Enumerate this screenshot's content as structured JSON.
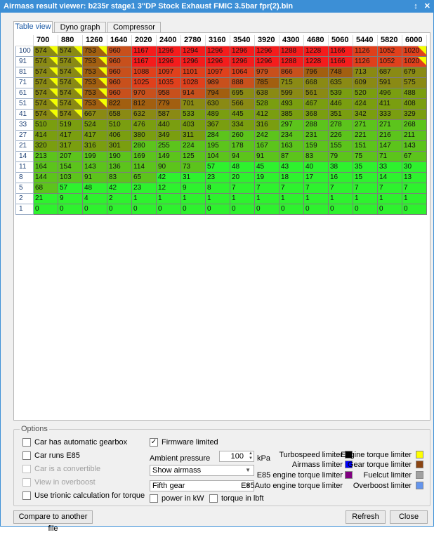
{
  "window": {
    "title": "Airmass result viewer: b235r stage1 3\"DP Stock Exhaust FMIC 3.5bar fpr(2).bin",
    "pin": "↕",
    "close": "✕"
  },
  "tabs": [
    {
      "label": "Table view",
      "active": true
    },
    {
      "label": "Dyno graph view",
      "active": false
    },
    {
      "label": "Compressor map",
      "active": false
    }
  ],
  "table": {
    "columns": [
      "700",
      "880",
      "1260",
      "1640",
      "2020",
      "2400",
      "2780",
      "3160",
      "3540",
      "3920",
      "4300",
      "4680",
      "5060",
      "5440",
      "5820",
      "6000"
    ],
    "rows": [
      "100",
      "91",
      "81",
      "71",
      "61",
      "51",
      "41",
      "33",
      "27",
      "21",
      "14",
      "11",
      "8",
      "5",
      "2",
      "1"
    ],
    "values": [
      [
        "574",
        "574",
        "753",
        "960",
        "1167",
        "1296",
        "1294",
        "1296",
        "1296",
        "1296",
        "1288",
        "1228",
        "1166",
        "1126",
        "1052",
        "1020"
      ],
      [
        "574",
        "574",
        "753",
        "960",
        "1167",
        "1296",
        "1296",
        "1296",
        "1296",
        "1296",
        "1288",
        "1228",
        "1166",
        "1126",
        "1052",
        "1020"
      ],
      [
        "574",
        "574",
        "753",
        "960",
        "1088",
        "1097",
        "1101",
        "1097",
        "1064",
        "979",
        "866",
        "796",
        "748",
        "713",
        "687",
        "679"
      ],
      [
        "574",
        "574",
        "753",
        "960",
        "1025",
        "1035",
        "1028",
        "989",
        "888",
        "785",
        "715",
        "668",
        "635",
        "609",
        "591",
        "575"
      ],
      [
        "574",
        "574",
        "753",
        "960",
        "970",
        "958",
        "914",
        "794",
        "695",
        "638",
        "599",
        "561",
        "539",
        "520",
        "496",
        "488"
      ],
      [
        "574",
        "574",
        "753",
        "822",
        "812",
        "779",
        "701",
        "630",
        "566",
        "528",
        "493",
        "467",
        "446",
        "424",
        "411",
        "408"
      ],
      [
        "574",
        "574",
        "667",
        "658",
        "632",
        "587",
        "533",
        "489",
        "445",
        "412",
        "385",
        "368",
        "351",
        "342",
        "333",
        "329"
      ],
      [
        "510",
        "519",
        "524",
        "510",
        "476",
        "440",
        "403",
        "367",
        "334",
        "316",
        "297",
        "288",
        "278",
        "271",
        "271",
        "268"
      ],
      [
        "414",
        "417",
        "417",
        "406",
        "380",
        "349",
        "311",
        "284",
        "260",
        "242",
        "234",
        "231",
        "226",
        "221",
        "216",
        "211"
      ],
      [
        "320",
        "317",
        "316",
        "301",
        "280",
        "255",
        "224",
        "195",
        "178",
        "167",
        "163",
        "159",
        "155",
        "151",
        "147",
        "143"
      ],
      [
        "213",
        "207",
        "199",
        "190",
        "169",
        "149",
        "125",
        "104",
        "94",
        "91",
        "87",
        "83",
        "79",
        "75",
        "71",
        "67"
      ],
      [
        "164",
        "154",
        "143",
        "136",
        "114",
        "90",
        "73",
        "57",
        "48",
        "45",
        "43",
        "40",
        "38",
        "35",
        "33",
        "30"
      ],
      [
        "144",
        "103",
        "91",
        "83",
        "65",
        "42",
        "31",
        "23",
        "20",
        "19",
        "18",
        "17",
        "16",
        "15",
        "14",
        "13"
      ],
      [
        "68",
        "57",
        "48",
        "42",
        "23",
        "12",
        "9",
        "8",
        "7",
        "7",
        "7",
        "7",
        "7",
        "7",
        "7",
        "7"
      ],
      [
        "21",
        "9",
        "4",
        "2",
        "1",
        "1",
        "1",
        "1",
        "1",
        "1",
        "1",
        "1",
        "1",
        "1",
        "1",
        "1"
      ],
      [
        "0",
        "0",
        "0",
        "0",
        "0",
        "0",
        "0",
        "0",
        "0",
        "0",
        "0",
        "0",
        "0",
        "0",
        "0",
        "0"
      ]
    ],
    "colors": {
      "red": "#f41c1c",
      "darkred": "#e0401c",
      "rust": "#c8501c",
      "brown": "#a25f10",
      "olive": "#8a8a14",
      "yellowgreen": "#7a9e10",
      "green": "#5cc41c",
      "brightgreen": "#2ef22e"
    }
  },
  "options": {
    "title": "Options",
    "automatic_gearbox": "Car has automatic gearbox",
    "runs_e85": "Car runs E85",
    "convertible": "Car is a convertible",
    "overboost": "View in overboost",
    "trionic_torque": "Use trionic calculation for torque",
    "firmware_limited": "Firmware limited",
    "ambient_label": "Ambient pressure",
    "ambient_value": "100",
    "ambient_unit": "kPa",
    "view_select": "Show airmass",
    "gear_select": "Fifth gear",
    "power_kw": "power in kW",
    "torque_lbft": "torque in lbft"
  },
  "legend": {
    "turbospeed": {
      "label": "Turbospeed limiter",
      "color": "#000000"
    },
    "airmass": {
      "label": "Airmass limiter",
      "color": "#0000ff"
    },
    "e85_engine": {
      "label": "E85 engine torque limiter",
      "color": "#800080"
    },
    "e85auto": {
      "label": "E85Auto engine torque limiter",
      "color": "#f0f0f0"
    },
    "engine_torque": {
      "label": "Engine torque limiter",
      "color": "#ffff00"
    },
    "gear_torque": {
      "label": "Gear torque limiter",
      "color": "#8b4513"
    },
    "fuelcut": {
      "label": "Fuelcut limiter",
      "color": "#a0a0a0"
    },
    "overboost": {
      "label": "Overboost limiter",
      "color": "#6495ed"
    }
  },
  "buttons": {
    "compare": "Compare to another file",
    "refresh": "Refresh",
    "close": "Close"
  }
}
